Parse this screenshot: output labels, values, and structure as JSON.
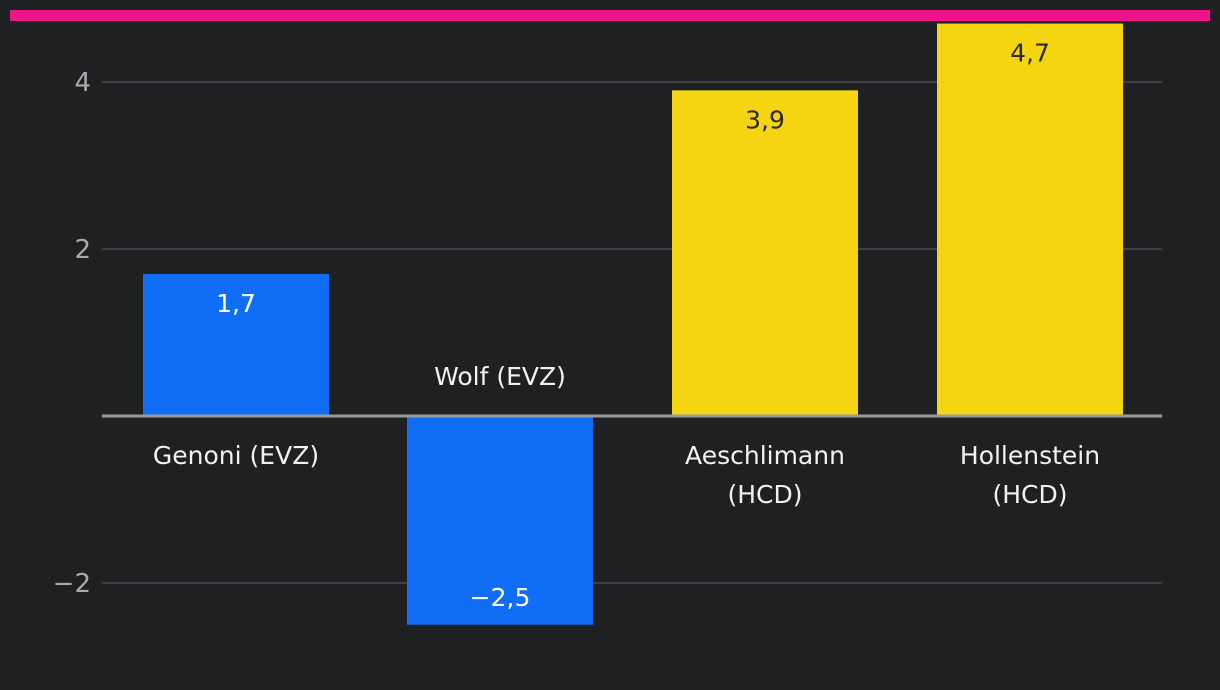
{
  "colors": {
    "background": "#1f2022",
    "top_rule": "#f0148c",
    "evz": "#0f6ef5",
    "hcd": "#f5d412",
    "grid": "#4a4b4e",
    "zero_line": "#9a9a9a",
    "label_on_blue": "#ffffff",
    "label_on_yellow": "#2a2a2a"
  },
  "chart_data": {
    "type": "bar",
    "categories": [
      "Genoni (EVZ)",
      "Wolf (EVZ)",
      "Aeschlimann (HCD)",
      "Hollenstein (HCD)"
    ],
    "category_lines": [
      [
        "Genoni (EVZ)"
      ],
      [
        "Wolf (EVZ)"
      ],
      [
        "Aeschlimann",
        "(HCD)"
      ],
      [
        "Hollenstein",
        "(HCD)"
      ]
    ],
    "values": [
      1.7,
      -2.5,
      3.9,
      4.7
    ],
    "value_labels": [
      "1,7",
      "−2,5",
      "3,9",
      "4,7"
    ],
    "teams": [
      "EVZ",
      "EVZ",
      "HCD",
      "HCD"
    ],
    "yticks": [
      -2,
      2,
      4
    ],
    "ytick_labels": [
      "−2",
      "2",
      "4"
    ],
    "ylim": [
      -2.75,
      4.7
    ],
    "grid": true,
    "title": "",
    "xlabel": "",
    "ylabel": ""
  }
}
